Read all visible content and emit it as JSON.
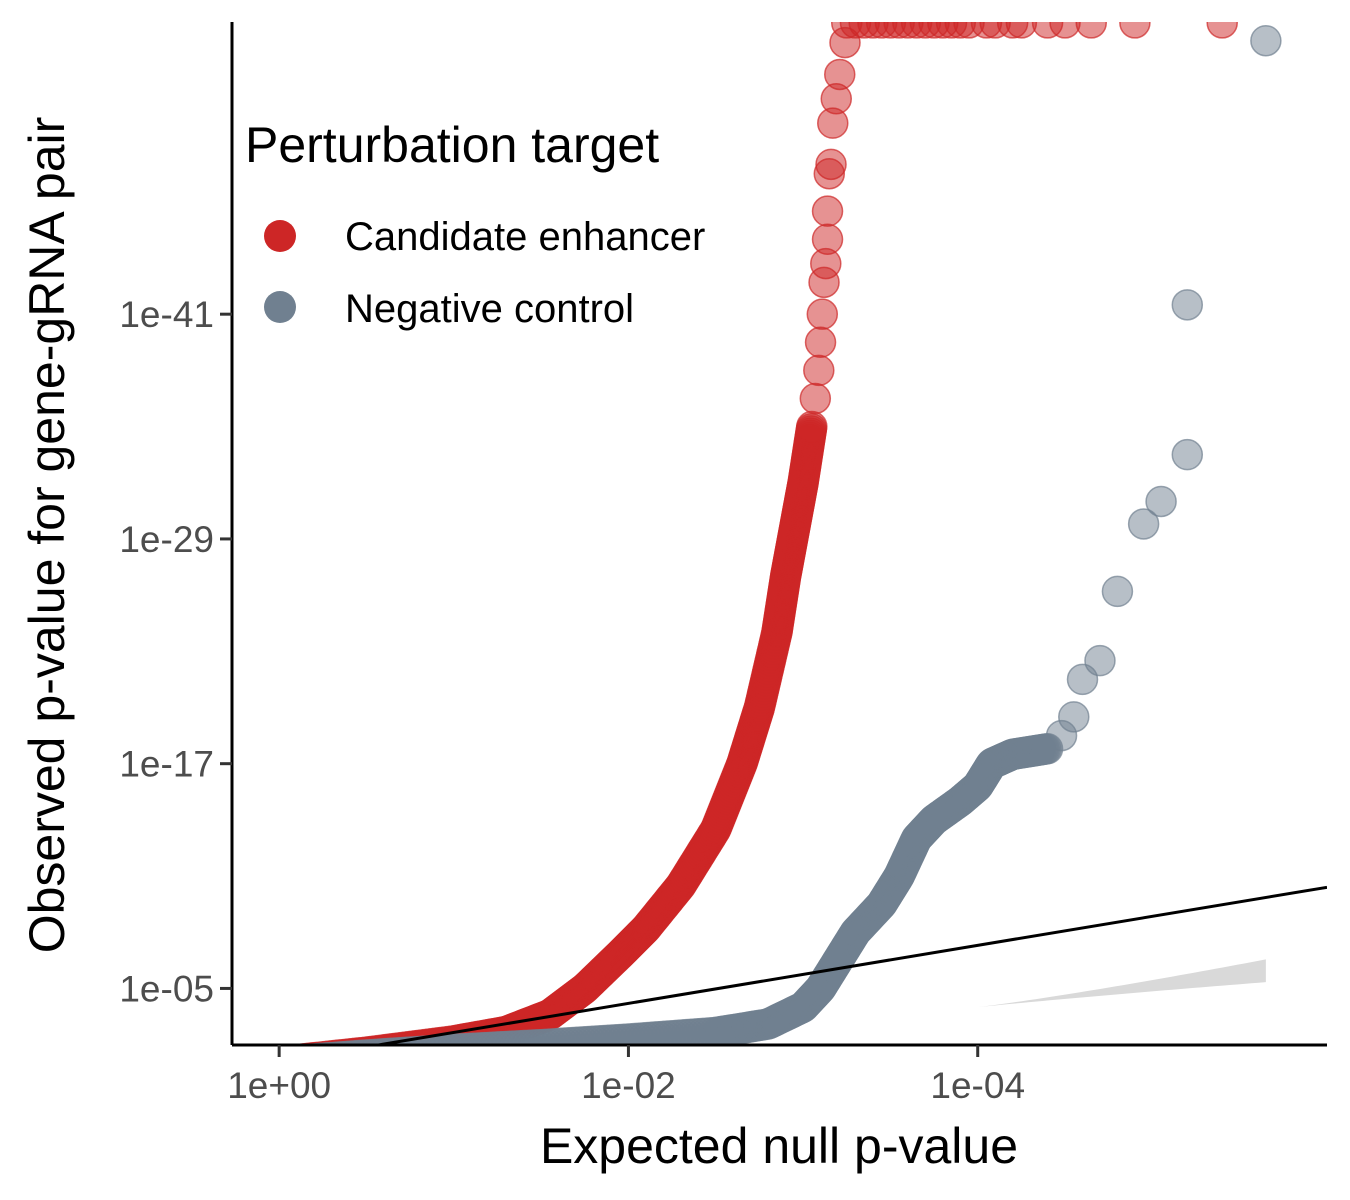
{
  "chart_data": {
    "type": "scatter",
    "x_axis": {
      "title": "Expected null p-value",
      "scale": "reversed-log10",
      "ticks": [
        "1e+00",
        "1e-02",
        "1e-04"
      ],
      "tick_log10": [
        0,
        -2,
        -4
      ],
      "range_log10": [
        0.27,
        -6.0
      ]
    },
    "y_axis": {
      "title": "Observed p-value for gene-gRNA pair",
      "scale": "reversed-log10",
      "ticks": [
        "1e-05",
        "1e-17",
        "1e-29",
        "1e-41"
      ],
      "tick_log10": [
        -5,
        -17,
        -29,
        -41
      ],
      "range_log10": [
        -1.98,
        -56.6
      ]
    },
    "legend": {
      "title": "Perturbation target",
      "position": "top-left",
      "entries": [
        {
          "label": "Candidate enhancer",
          "color": "#cd2626"
        },
        {
          "label": "Negative control",
          "color": "#708090"
        }
      ]
    },
    "reference_line": {
      "description": "y = x",
      "color": "#000000",
      "band_color": "#d9d9d9"
    },
    "grid": false,
    "series": [
      {
        "name": "Candidate enhancer",
        "color": "#cd2626",
        "dense_curve": [
          [
            0,
            -1.1
          ],
          [
            -0.5,
            -1.6
          ],
          [
            -1.0,
            -2.2
          ],
          [
            -1.3,
            -2.7
          ],
          [
            -1.55,
            -3.6
          ],
          [
            -1.75,
            -5.0
          ],
          [
            -1.95,
            -6.8
          ],
          [
            -2.1,
            -8.2
          ],
          [
            -2.3,
            -10.5
          ],
          [
            -2.5,
            -13.5
          ],
          [
            -2.65,
            -17.0
          ],
          [
            -2.75,
            -20.0
          ],
          [
            -2.85,
            -24.0
          ],
          [
            -2.9,
            -27.0
          ],
          [
            -2.95,
            -29.5
          ],
          [
            -3.0,
            -32.0
          ],
          [
            -3.05,
            -35.0
          ]
        ],
        "sparse_points": [
          [
            -3.07,
            -36.5
          ],
          [
            -3.09,
            -38.0
          ],
          [
            -3.1,
            -39.5
          ],
          [
            -3.11,
            -41.0
          ],
          [
            -3.12,
            -42.7
          ],
          [
            -3.13,
            -43.7
          ],
          [
            -3.14,
            -45.0
          ],
          [
            -3.14,
            -46.5
          ],
          [
            -3.15,
            -48.5
          ],
          [
            -3.16,
            -49.0
          ],
          [
            -3.17,
            -51.2
          ],
          [
            -3.19,
            -52.5
          ],
          [
            -3.21,
            -53.8
          ],
          [
            -3.24,
            -55.5
          ]
        ],
        "top_capped_x": [
          -3.25,
          -3.3,
          -3.35,
          -3.4,
          -3.45,
          -3.5,
          -3.55,
          -3.6,
          -3.65,
          -3.7,
          -3.75,
          -3.8,
          -3.85,
          -3.9,
          -3.95,
          -4.05,
          -4.1,
          -4.2,
          -4.25,
          -4.4,
          -4.5,
          -4.65,
          -4.9,
          -5.4
        ]
      },
      {
        "name": "Negative control",
        "color": "#708090",
        "dense_curve": [
          [
            0,
            -1.1
          ],
          [
            -0.5,
            -1.45
          ],
          [
            -1.0,
            -1.75
          ],
          [
            -1.5,
            -2.0
          ],
          [
            -2.0,
            -2.3
          ],
          [
            -2.5,
            -2.65
          ],
          [
            -2.8,
            -3.1
          ],
          [
            -3.0,
            -4.0
          ],
          [
            -3.1,
            -5.0
          ],
          [
            -3.2,
            -6.5
          ],
          [
            -3.3,
            -8.0
          ],
          [
            -3.45,
            -9.5
          ],
          [
            -3.55,
            -11.0
          ],
          [
            -3.65,
            -13.0
          ],
          [
            -3.75,
            -14.0
          ],
          [
            -3.9,
            -15.0
          ],
          [
            -4.0,
            -15.8
          ],
          [
            -4.08,
            -17.0
          ],
          [
            -4.2,
            -17.5
          ],
          [
            -4.4,
            -17.8
          ]
        ],
        "sparse_points": [
          [
            -4.48,
            -18.5
          ],
          [
            -4.55,
            -19.5
          ],
          [
            -4.6,
            -21.5
          ],
          [
            -4.7,
            -22.5
          ],
          [
            -4.8,
            -26.2
          ],
          [
            -4.95,
            -29.8
          ],
          [
            -5.05,
            -31.0
          ],
          [
            -5.2,
            -33.5
          ],
          [
            -5.2,
            -41.5
          ],
          [
            -5.65,
            -55.6
          ]
        ]
      }
    ]
  }
}
